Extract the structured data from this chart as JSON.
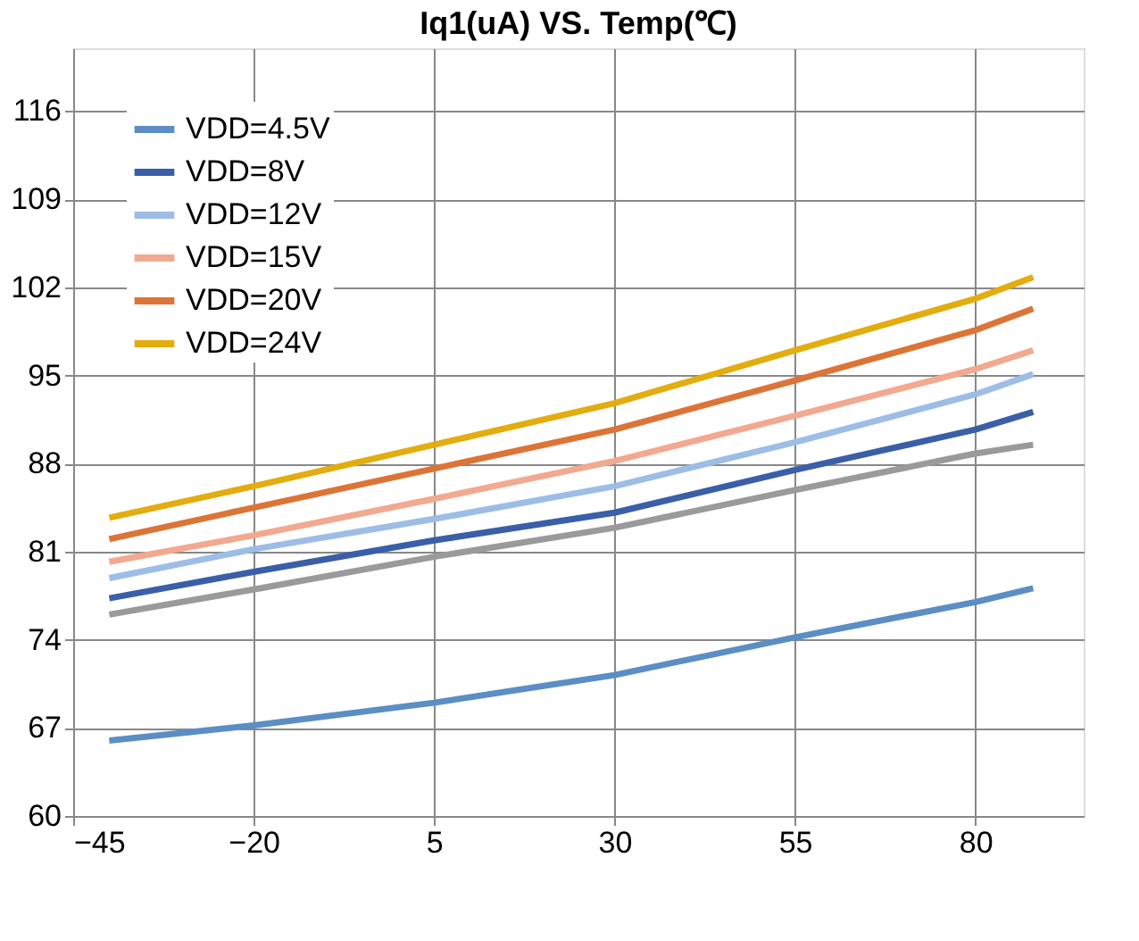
{
  "chart_data": {
    "type": "line",
    "title": "Iq1(uA) VS. Temp(℃)",
    "x": [
      -40,
      -20,
      5,
      30,
      55,
      80,
      88
    ],
    "xlim": [
      -45,
      95
    ],
    "xticks": [
      -45,
      -20,
      5,
      30,
      55,
      80
    ],
    "ylim": [
      60,
      121
    ],
    "yticks": [
      60,
      67,
      74,
      81,
      88,
      95,
      102,
      109,
      116
    ],
    "grid": true,
    "legend": "top left",
    "marker": "none",
    "line_style": "solid",
    "series": [
      {
        "name": "VDD=4.5V",
        "color": "#5b8ec4",
        "values": [
          66.0,
          67.2,
          69.0,
          71.2,
          74.2,
          77.0,
          78.1
        ]
      },
      {
        "name": null,
        "color": "#9a9a9a",
        "values": [
          76.0,
          78.0,
          80.6,
          82.9,
          85.9,
          88.8,
          89.5
        ]
      },
      {
        "name": "VDD=8V",
        "color": "#3a5fa8",
        "values": [
          77.3,
          79.4,
          81.9,
          84.1,
          87.5,
          90.7,
          92.1
        ]
      },
      {
        "name": "VDD=12V",
        "color": "#9dbde6",
        "values": [
          78.9,
          81.2,
          83.6,
          86.2,
          89.7,
          93.5,
          95.1
        ]
      },
      {
        "name": "VDD=15V",
        "color": "#f2a98f",
        "values": [
          80.2,
          82.3,
          85.2,
          88.2,
          91.8,
          95.5,
          97.0
        ]
      },
      {
        "name": "VDD=20V",
        "color": "#dd7437",
        "values": [
          82.0,
          84.5,
          87.6,
          90.7,
          94.6,
          98.6,
          100.3
        ]
      },
      {
        "name": "VDD=24V",
        "color": "#e3ac0f",
        "values": [
          83.7,
          86.2,
          89.5,
          92.8,
          97.0,
          101.1,
          102.8
        ]
      }
    ]
  }
}
